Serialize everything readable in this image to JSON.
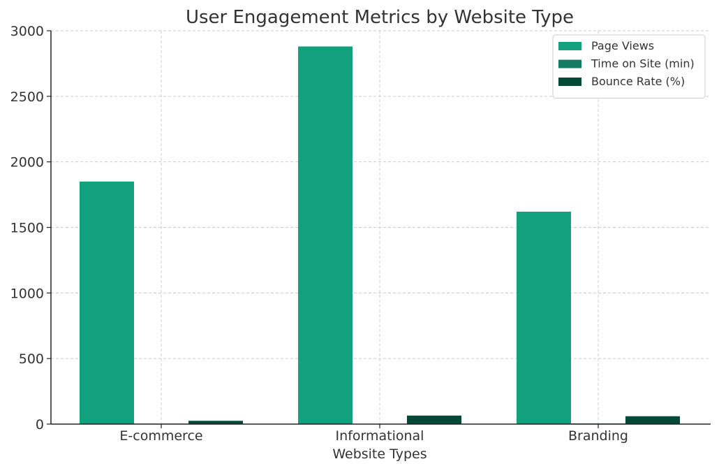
{
  "chart_data": {
    "type": "bar",
    "title": "User Engagement Metrics by Website Type",
    "xlabel": "Website Types",
    "ylabel": "",
    "categories": [
      "E-commerce",
      "Informational",
      "Branding"
    ],
    "series": [
      {
        "name": "Page Views",
        "color": "#13a07c",
        "values": [
          1850,
          2880,
          1620
        ]
      },
      {
        "name": "Time on Site (min)",
        "color": "#157a62",
        "values": [
          3,
          2,
          5
        ]
      },
      {
        "name": "Bounce Rate (%)",
        "color": "#024a37",
        "values": [
          25,
          65,
          60
        ]
      }
    ],
    "ylim": [
      0,
      3000
    ],
    "yticks": [
      0,
      500,
      1000,
      1500,
      2000,
      2500,
      3000
    ],
    "grid": true,
    "legend_position": "top-right"
  }
}
